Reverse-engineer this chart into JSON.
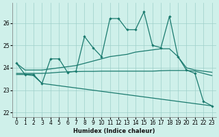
{
  "x": [
    0,
    1,
    2,
    3,
    4,
    5,
    6,
    7,
    8,
    9,
    10,
    11,
    12,
    13,
    14,
    15,
    16,
    17,
    18,
    19,
    20,
    21,
    22,
    23
  ],
  "line_main": [
    24.2,
    23.7,
    23.7,
    23.3,
    24.4,
    24.4,
    23.8,
    23.85,
    25.4,
    24.9,
    24.5,
    26.2,
    26.2,
    25.7,
    25.7,
    26.5,
    25.0,
    24.9,
    26.3,
    24.5,
    23.9,
    23.75,
    22.5,
    22.3
  ],
  "line_upper": [
    24.2,
    23.9,
    23.9,
    23.9,
    23.95,
    24.0,
    24.05,
    24.1,
    24.2,
    24.3,
    24.4,
    24.5,
    24.55,
    24.6,
    24.7,
    24.75,
    24.8,
    24.85,
    24.85,
    24.5,
    24.0,
    23.9,
    23.85,
    23.8
  ],
  "line_mid": [
    23.75,
    23.75,
    23.75,
    23.75,
    23.77,
    23.8,
    23.82,
    23.83,
    23.84,
    23.84,
    23.85,
    23.85,
    23.85,
    23.85,
    23.85,
    23.85,
    23.85,
    23.87,
    23.88,
    23.88,
    23.88,
    23.85,
    23.75,
    23.65
  ],
  "line_lower": [
    23.7,
    23.7,
    23.65,
    23.3,
    23.25,
    23.2,
    23.15,
    23.1,
    23.05,
    23.0,
    22.95,
    22.9,
    22.85,
    22.8,
    22.75,
    22.7,
    22.65,
    22.6,
    22.55,
    22.5,
    22.45,
    22.4,
    22.35,
    22.3
  ],
  "color": "#1a7a6e",
  "bg_color": "#cff0ea",
  "grid_color": "#9ecfca",
  "xlabel": "Humidex (Indice chaleur)",
  "ylim": [
    21.8,
    26.9
  ],
  "xlim": [
    -0.5,
    23.5
  ],
  "yticks": [
    22,
    23,
    24,
    25,
    26
  ],
  "xtick_labels": [
    "0",
    "1",
    "2",
    "3",
    "4",
    "5",
    "6",
    "7",
    "8",
    "9",
    "10",
    "11",
    "12",
    "13",
    "14",
    "15",
    "16",
    "17",
    "18",
    "19",
    "20",
    "21",
    "22",
    "23"
  ]
}
